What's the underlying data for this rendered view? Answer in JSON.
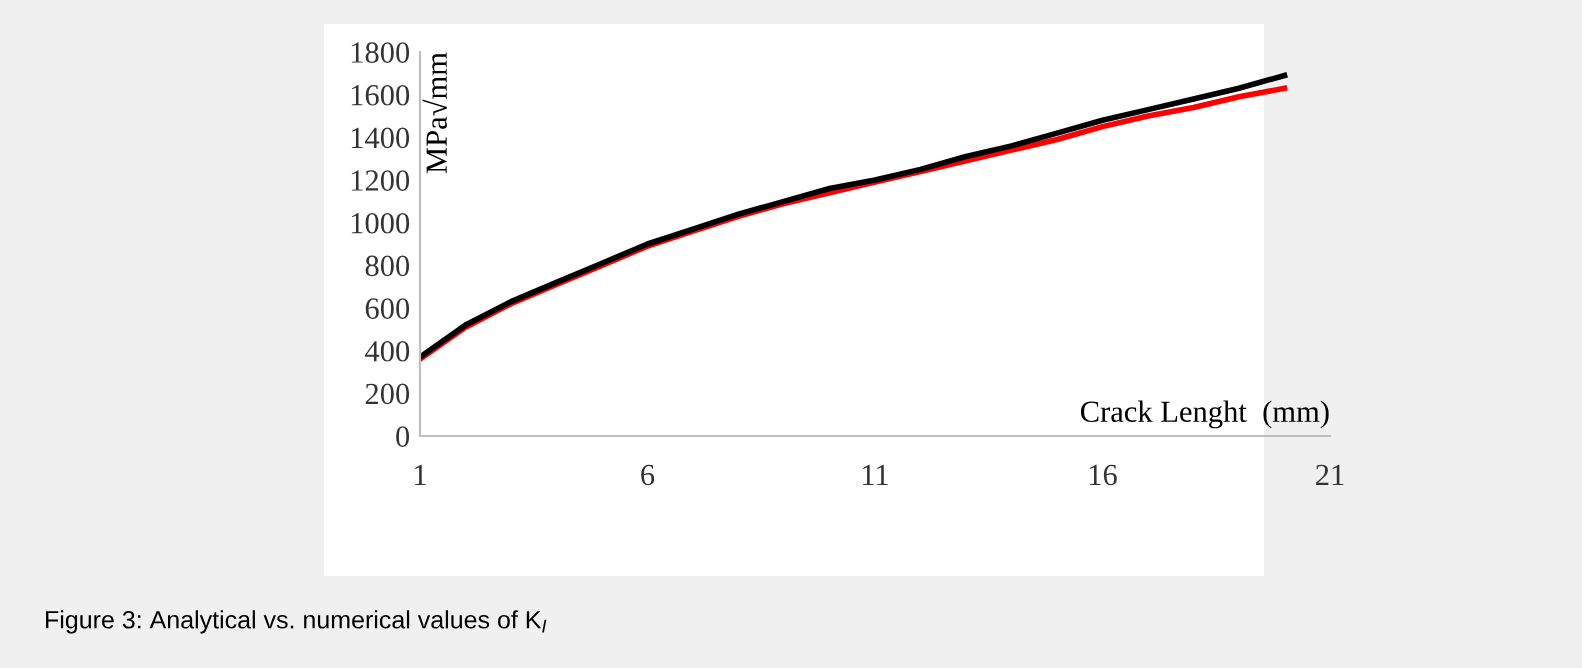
{
  "chart_data": {
    "type": "line",
    "xlabel": "Crack Lenght  (mm)",
    "ylabel": "MPa√mm",
    "x": [
      1,
      2,
      3,
      4,
      5,
      6,
      7,
      8,
      9,
      10,
      11,
      12,
      13,
      14,
      15,
      16,
      17,
      18,
      19,
      20
    ],
    "series": [
      {
        "color": "#ff0000",
        "values": [
          360,
          510,
          620,
          710,
          800,
          890,
          960,
          1030,
          1090,
          1140,
          1190,
          1240,
          1290,
          1340,
          1390,
          1450,
          1500,
          1540,
          1590,
          1630
        ]
      },
      {
        "color": "#000000",
        "values": [
          370,
          520,
          630,
          720,
          810,
          900,
          970,
          1040,
          1100,
          1160,
          1200,
          1250,
          1310,
          1360,
          1420,
          1480,
          1530,
          1580,
          1630,
          1690
        ]
      }
    ],
    "xlim": [
      1,
      21
    ],
    "xticks": [
      1,
      6,
      11,
      16,
      21
    ],
    "ylim": [
      0,
      1800
    ],
    "yticks": [
      0,
      200,
      400,
      600,
      800,
      1000,
      1200,
      1400,
      1600,
      1800
    ],
    "grid": false,
    "legend": false,
    "marker": "none",
    "line_style": "solid",
    "annotations": [
      "Figure 3: Analytical vs. numerical values of K$_{I}$"
    ]
  }
}
